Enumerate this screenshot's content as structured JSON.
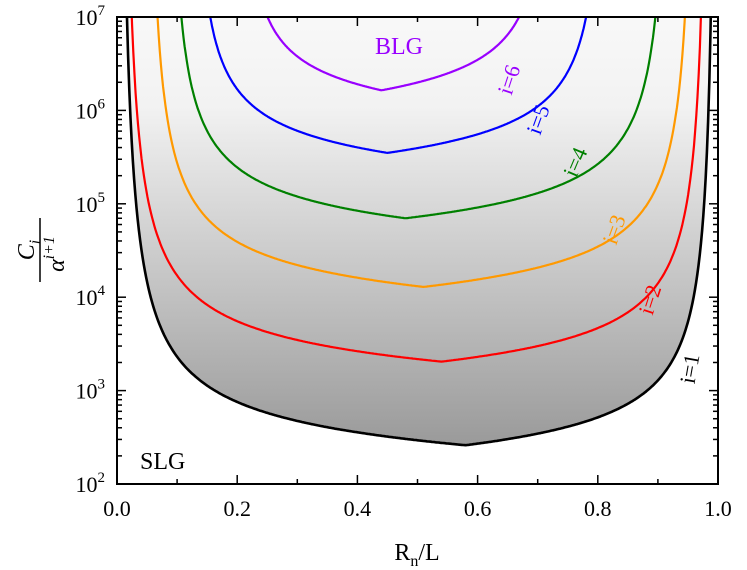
{
  "chart_data": {
    "type": "line",
    "xlabel": "R_n/L",
    "ylabel": "C_i / α^(i+1)",
    "xlim": [
      0.0,
      1.0
    ],
    "ylim_log10": [
      2,
      7
    ],
    "x_ticks": [
      {
        "value": 0.0,
        "label": "0.0"
      },
      {
        "value": 0.2,
        "label": "0.2"
      },
      {
        "value": 0.4,
        "label": "0.4"
      },
      {
        "value": 0.6,
        "label": "0.6"
      },
      {
        "value": 0.8,
        "label": "0.8"
      },
      {
        "value": 1.0,
        "label": "1.0"
      }
    ],
    "y_ticks": [
      {
        "exp": 2,
        "base": "10",
        "sup": "2"
      },
      {
        "exp": 3,
        "base": "10",
        "sup": "3"
      },
      {
        "exp": 4,
        "base": "10",
        "sup": "4"
      },
      {
        "exp": 5,
        "base": "10",
        "sup": "5"
      },
      {
        "exp": 6,
        "base": "10",
        "sup": "6"
      },
      {
        "exp": 7,
        "base": "10",
        "sup": "7"
      }
    ],
    "series": [
      {
        "name": "i=1",
        "color": "#000000",
        "x_min": 0.58,
        "y_min_log10": 2.415,
        "x_left": 0.0,
        "x_right": 1.0
      },
      {
        "name": "i=2",
        "color": "#ff0000",
        "x_min": 0.54,
        "y_min_log10": 3.31,
        "x_left": 0.005,
        "x_right": 0.988
      },
      {
        "name": "i=3",
        "color": "#ff9900",
        "x_min": 0.51,
        "y_min_log10": 4.11,
        "x_left": 0.045,
        "x_right": 0.967
      },
      {
        "name": "i=4",
        "color": "#008000",
        "x_min": 0.48,
        "y_min_log10": 4.845,
        "x_left": 0.08,
        "x_right": 0.926
      },
      {
        "name": "i=5",
        "color": "#0000ff",
        "x_min": 0.45,
        "y_min_log10": 5.545,
        "x_left": 0.12,
        "x_right": 0.82
      },
      {
        "name": "i=6",
        "color": "#9900ff",
        "x_min": 0.44,
        "y_min_log10": 6.215,
        "x_left": 0.2,
        "x_right": 0.73
      }
    ],
    "annotations": [
      {
        "text": "BLG",
        "color": "#9900ff"
      },
      {
        "text": "SLG",
        "color": "#000000"
      }
    ],
    "shading": "gray gradient region above i=1 curve"
  }
}
